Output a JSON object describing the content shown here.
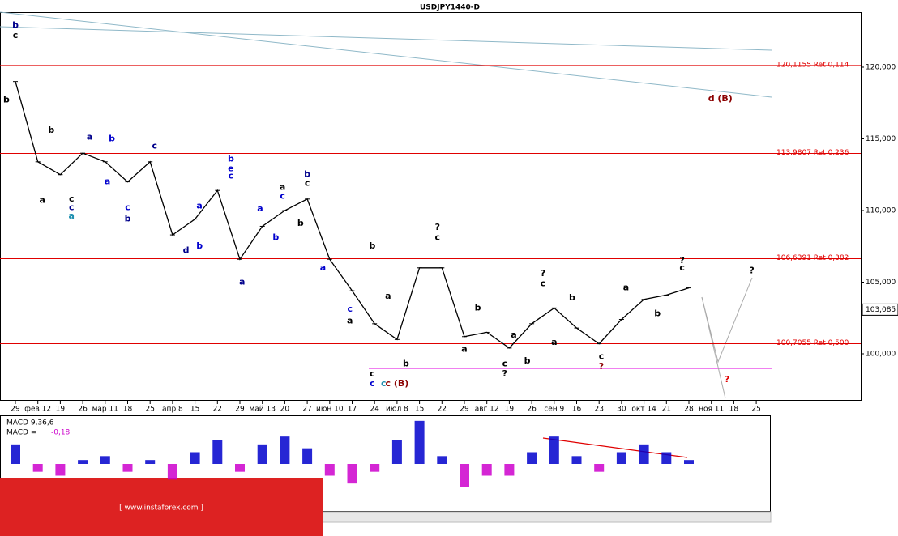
{
  "chart_data": {
    "type": "line",
    "title": "USDJPY1440-D",
    "categories": [
      "29",
      "фев 12",
      "19",
      "26",
      "мар 11",
      "18",
      "25",
      "апр 8",
      "15",
      "22",
      "29",
      "май 13",
      "20",
      "27",
      "июн 10",
      "17",
      "24",
      "июл 8",
      "15",
      "22",
      "29",
      "авг 12",
      "19",
      "26",
      "сен 9",
      "16",
      "23",
      "30",
      "окт 14",
      "21",
      "28",
      "ноя 11",
      "18",
      "25"
    ],
    "series": [
      {
        "name": "USDJPY",
        "color": "#000000",
        "values": [
          119.0,
          113.4,
          112.5,
          114.0,
          113.4,
          112.0,
          113.4,
          108.3,
          109.4,
          111.4,
          106.6,
          108.9,
          110.0,
          110.8,
          106.6,
          104.4,
          102.1,
          101.0,
          106.0,
          106.0,
          101.2,
          101.5,
          100.4,
          102.1,
          103.2,
          101.8,
          100.7,
          102.4,
          103.8,
          104.1,
          104.6,
          null,
          null,
          null
        ]
      }
    ],
    "ylim": [
      96.78,
      123.84
    ],
    "yticks": [
      {
        "value": 100,
        "label": "100,000"
      },
      {
        "value": 105,
        "label": "105,000"
      },
      {
        "value": 110,
        "label": "110,000"
      },
      {
        "value": 115,
        "label": "115,000"
      },
      {
        "value": 120,
        "label": "120,000"
      }
    ],
    "last_price": {
      "value": 103.085,
      "label": "103,085"
    },
    "levels": [
      {
        "value": 120.1155,
        "label": "120,1155 Ret 0,114",
        "color": "#e00000"
      },
      {
        "value": 113.9807,
        "label": "113,9807 Ret 0,236",
        "color": "#e00000"
      },
      {
        "value": 106.6391,
        "label": "106,6391 Ret 0,382",
        "color": "#e00000"
      },
      {
        "value": 100.7055,
        "label": "100,7055 Ret 0,500",
        "color": "#e00000"
      }
    ],
    "annotations": [
      {
        "text": "b",
        "x": 0,
        "y": 122.9,
        "color": "#00008b"
      },
      {
        "text": "c",
        "x": 0,
        "y": 122.2,
        "color": "#000000"
      },
      {
        "text": "b",
        "x": -0.4,
        "y": 117.7,
        "color": "#000000"
      },
      {
        "text": "a",
        "x": 1.2,
        "y": 110.7,
        "color": "#000000"
      },
      {
        "text": "b",
        "x": 1.6,
        "y": 115.6,
        "color": "#000000"
      },
      {
        "text": "c",
        "x": 2.5,
        "y": 110.8,
        "color": "#000000"
      },
      {
        "text": "c",
        "x": 2.5,
        "y": 110.2,
        "color": "#00008b"
      },
      {
        "text": "a",
        "x": 2.5,
        "y": 109.6,
        "color": "#1e90b0"
      },
      {
        "text": "a",
        "x": 3.3,
        "y": 115.1,
        "color": "#00008b"
      },
      {
        "text": "b",
        "x": 4.3,
        "y": 115.0,
        "color": "#0000cd"
      },
      {
        "text": "a",
        "x": 4.1,
        "y": 112.0,
        "color": "#0000cd"
      },
      {
        "text": "c",
        "x": 6.2,
        "y": 114.5,
        "color": "#00008b"
      },
      {
        "text": "c",
        "x": 5.0,
        "y": 110.2,
        "color": "#0000cd"
      },
      {
        "text": "b",
        "x": 5.0,
        "y": 109.4,
        "color": "#00008b"
      },
      {
        "text": "d",
        "x": 7.6,
        "y": 107.2,
        "color": "#00008b"
      },
      {
        "text": "b",
        "x": 8.2,
        "y": 107.5,
        "color": "#0000cd"
      },
      {
        "text": "a",
        "x": 8.2,
        "y": 110.3,
        "color": "#0000cd"
      },
      {
        "text": "b",
        "x": 9.6,
        "y": 113.6,
        "color": "#0000cd"
      },
      {
        "text": "e",
        "x": 9.6,
        "y": 112.9,
        "color": "#0000cd"
      },
      {
        "text": "c",
        "x": 9.6,
        "y": 112.4,
        "color": "#0000cd"
      },
      {
        "text": "a",
        "x": 10.1,
        "y": 105.0,
        "color": "#00008b"
      },
      {
        "text": "b",
        "x": 11.6,
        "y": 108.1,
        "color": "#0000cd"
      },
      {
        "text": "a",
        "x": 10.9,
        "y": 110.1,
        "color": "#0000cd"
      },
      {
        "text": "c",
        "x": 11.9,
        "y": 111.0,
        "color": "#0000cd"
      },
      {
        "text": "a",
        "x": 11.9,
        "y": 111.6,
        "color": "#000000"
      },
      {
        "text": "b",
        "x": 13.0,
        "y": 112.5,
        "color": "#00008b"
      },
      {
        "text": "c",
        "x": 13.0,
        "y": 111.9,
        "color": "#000000"
      },
      {
        "text": "b",
        "x": 12.7,
        "y": 109.1,
        "color": "#000000"
      },
      {
        "text": "a",
        "x": 13.7,
        "y": 106.0,
        "color": "#0000cd"
      },
      {
        "text": "c",
        "x": 14.9,
        "y": 103.1,
        "color": "#0000cd"
      },
      {
        "text": "a",
        "x": 14.9,
        "y": 102.3,
        "color": "#000000"
      },
      {
        "text": "b",
        "x": 15.9,
        "y": 107.5,
        "color": "#000000"
      },
      {
        "text": "c",
        "x": 15.9,
        "y": 98.6,
        "color": "#000000"
      },
      {
        "text": "c",
        "x": 15.9,
        "y": 97.9,
        "color": "#0000cd"
      },
      {
        "text": "c",
        "x": 16.4,
        "y": 97.9,
        "color": "#1e90b0"
      },
      {
        "text": "c (B)",
        "x": 17.0,
        "y": 97.9,
        "color": "#8b0000"
      },
      {
        "text": "?",
        "x": 18.8,
        "y": 108.8,
        "color": "#000000"
      },
      {
        "text": "c",
        "x": 18.8,
        "y": 108.1,
        "color": "#000000"
      },
      {
        "text": "a",
        "x": 16.6,
        "y": 104.0,
        "color": "#000000"
      },
      {
        "text": "b",
        "x": 17.4,
        "y": 99.3,
        "color": "#000000"
      },
      {
        "text": "a",
        "x": 20.0,
        "y": 100.3,
        "color": "#000000"
      },
      {
        "text": "b",
        "x": 20.6,
        "y": 103.2,
        "color": "#000000"
      },
      {
        "text": "c",
        "x": 21.8,
        "y": 99.3,
        "color": "#000000"
      },
      {
        "text": "?",
        "x": 21.8,
        "y": 98.6,
        "color": "#000000"
      },
      {
        "text": "a",
        "x": 22.2,
        "y": 101.3,
        "color": "#000000"
      },
      {
        "text": "b",
        "x": 22.8,
        "y": 99.5,
        "color": "#000000"
      },
      {
        "text": "?",
        "x": 23.5,
        "y": 105.6,
        "color": "#000000"
      },
      {
        "text": "c",
        "x": 23.5,
        "y": 104.9,
        "color": "#000000"
      },
      {
        "text": "a",
        "x": 24.0,
        "y": 100.8,
        "color": "#000000"
      },
      {
        "text": "b",
        "x": 24.8,
        "y": 103.9,
        "color": "#000000"
      },
      {
        "text": "c",
        "x": 26.1,
        "y": 99.8,
        "color": "#000000"
      },
      {
        "text": "?",
        "x": 26.1,
        "y": 99.1,
        "color": "#8b0000"
      },
      {
        "text": "a",
        "x": 27.2,
        "y": 104.6,
        "color": "#000000"
      },
      {
        "text": "b",
        "x": 28.6,
        "y": 102.8,
        "color": "#000000"
      },
      {
        "text": "?",
        "x": 29.7,
        "y": 106.5,
        "color": "#000000"
      },
      {
        "text": "c",
        "x": 29.7,
        "y": 106.0,
        "color": "#000000"
      },
      {
        "text": "?",
        "x": 32.8,
        "y": 105.8,
        "color": "#000000"
      },
      {
        "text": "?",
        "x": 31.7,
        "y": 98.2,
        "color": "#e00000"
      },
      {
        "text": "d (B)",
        "x": 31.4,
        "y": 117.8,
        "color": "#8b0000"
      }
    ],
    "macd": {
      "title": "MACD 9,36,6",
      "label": "MACD =",
      "value_label": "-0,18",
      "ylim": [
        -1.2,
        1.2
      ],
      "values": [
        0.5,
        -0.2,
        -0.3,
        0.1,
        0.2,
        -0.2,
        0.1,
        -0.4,
        0.3,
        0.6,
        -0.2,
        0.5,
        0.7,
        0.4,
        -0.3,
        -0.5,
        -0.2,
        0.6,
        1.1,
        0.2,
        -0.6,
        -0.3,
        -0.3,
        0.3,
        0.7,
        0.2,
        -0.2,
        0.3,
        0.5,
        0.3,
        0.1,
        null,
        null,
        null
      ],
      "positive_color": "#0000cd",
      "negative_color": "#cc00cc"
    },
    "watermark": "[ www.instaforex.com ]"
  }
}
